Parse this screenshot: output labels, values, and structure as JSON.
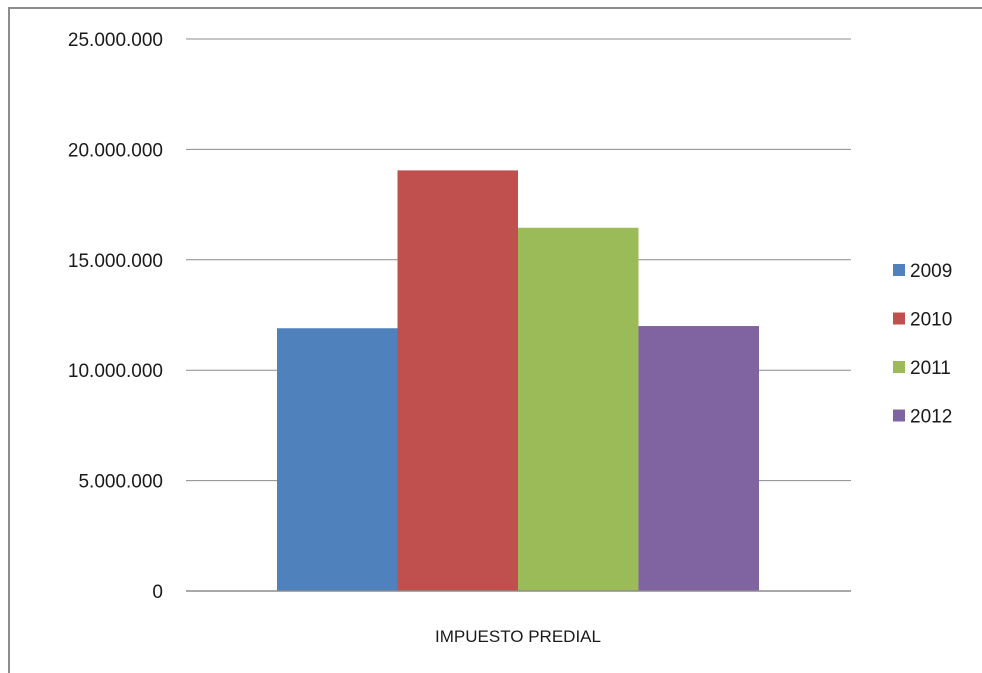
{
  "chart_data": {
    "type": "bar",
    "title": "",
    "xlabel": "",
    "ylabel": "",
    "categories": [
      "IMPUESTO PREDIAL"
    ],
    "series": [
      {
        "name": "2009",
        "values": [
          11900000
        ],
        "color": "#4f81bd"
      },
      {
        "name": "2010",
        "values": [
          19050000
        ],
        "color": "#c0504d"
      },
      {
        "name": "2011",
        "values": [
          16450000
        ],
        "color": "#9bbb59"
      },
      {
        "name": "2012",
        "values": [
          12000000
        ],
        "color": "#8064a2"
      }
    ],
    "ylim": [
      0,
      25000000
    ],
    "yticks": [
      0,
      5000000,
      10000000,
      15000000,
      20000000,
      25000000
    ],
    "ytick_labels": [
      "0",
      "5.000.000",
      "10.000.000",
      "15.000.000",
      "20.000.000",
      "25.000.000"
    ],
    "grid": true,
    "legend_position": "right"
  }
}
